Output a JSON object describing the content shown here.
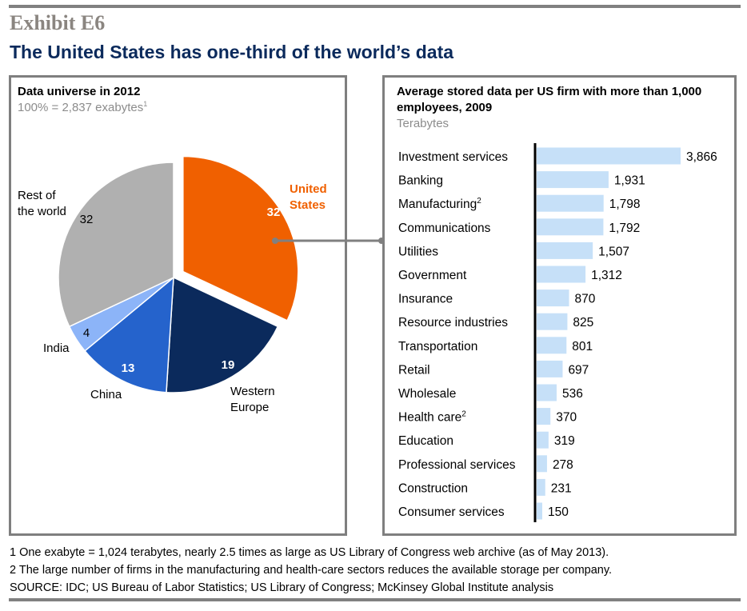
{
  "exhibit": "Exhibit E6",
  "title": "The United States has one-third of the world’s data",
  "colors": {
    "us": "#f06000",
    "western_europe": "#0b2a5c",
    "china": "#2563cc",
    "india": "#8cb4f8",
    "rest": "#b0b0b0",
    "bar": "#c6e0f8",
    "title": "#0b2a5c"
  },
  "chart_data": [
    {
      "type": "pie",
      "title": "Data universe in 2012",
      "subtitle": "100% = 2,837 exabytes",
      "subtitle_footnote": "1",
      "slices": [
        {
          "label": "United States",
          "value": 32,
          "exploded": true
        },
        {
          "label": "Western Europe",
          "value": 19
        },
        {
          "label": "China",
          "value": 13
        },
        {
          "label": "India",
          "value": 4
        },
        {
          "label": "Rest of the world",
          "value": 32
        }
      ]
    },
    {
      "type": "bar",
      "orientation": "horizontal",
      "title": "Average stored data per US firm with more than 1,000 employees, 2009",
      "unit": "Terabytes",
      "categories": [
        "Investment services",
        "Banking",
        "Manufacturing",
        "Communications",
        "Utilities",
        "Government",
        "Insurance",
        "Resource industries",
        "Transportation",
        "Retail",
        "Wholesale",
        "Health care",
        "Education",
        "Professional services",
        "Construction",
        "Consumer services"
      ],
      "footnotes": {
        "Manufacturing": "2",
        "Health care": "2"
      },
      "values": [
        3866,
        1931,
        1798,
        1792,
        1507,
        1312,
        870,
        825,
        801,
        697,
        536,
        370,
        319,
        278,
        231,
        150
      ],
      "value_labels": [
        "3,866",
        "1,931",
        "1,798",
        "1,792",
        "1,507",
        "1,312",
        "870",
        "825",
        "801",
        "697",
        "536",
        "370",
        "319",
        "278",
        "231",
        "150"
      ]
    }
  ],
  "footnotes": [
    "1  One exabyte = 1,024 terabytes, nearly 2.5 times as large as US Library of Congress web archive (as of May 2013).",
    "2  The large number of firms in the manufacturing and health-care sectors reduces the available storage per company.",
    "SOURCE: IDC; US Bureau of Labor Statistics; US Library of Congress; McKinsey Global Institute analysis"
  ]
}
